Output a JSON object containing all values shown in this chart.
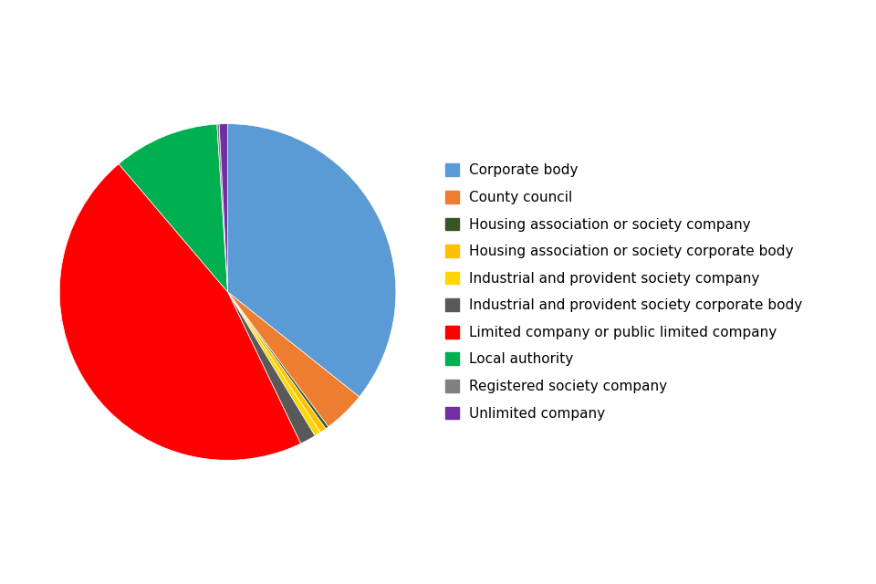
{
  "labels": [
    "Corporate body",
    "County council",
    "Housing association or society company",
    "Housing association or society corporate body",
    "Industrial and provident society company",
    "Industrial and provident society corporate body",
    "Limited company or public limited company",
    "Local authority",
    "Registered society company",
    "Unlimited company"
  ],
  "values": [
    35.0,
    4.0,
    0.3,
    0.6,
    0.6,
    1.5,
    45.0,
    10.0,
    0.2,
    0.8
  ],
  "colors": [
    "#5B9BD5",
    "#ED7D31",
    "#375623",
    "#FFC000",
    "#FFD700",
    "#595959",
    "#FF0000",
    "#00B050",
    "#808080",
    "#7030A0"
  ],
  "legend_fontsize": 11,
  "background_color": "#FFFFFF",
  "startangle": 90
}
